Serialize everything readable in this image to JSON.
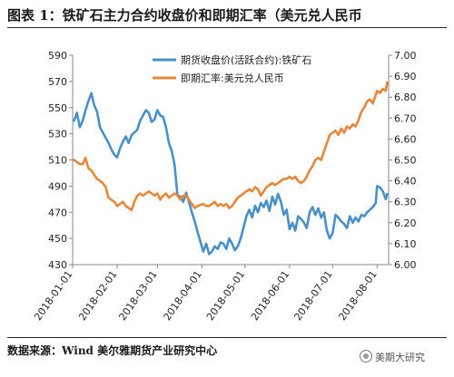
{
  "figure": {
    "title": "图表 1：铁矿石主力合约收盘价和即期汇率（美元兑人民币",
    "source": "数据来源：Wind  美尔雅期货产业研究中心",
    "watermark": "美期大研究"
  },
  "chart_data": {
    "type": "line",
    "grid": false,
    "legend_position": "top-center",
    "x_type": "date",
    "x_ticks": [
      "2018-01-01",
      "2018-02-01",
      "2018-03-01",
      "2018-04-01",
      "2018-05-01",
      "2018-06-01",
      "2018-07-01",
      "2018-08-01"
    ],
    "y_left": {
      "min": 430,
      "max": 590,
      "ticks": [
        430,
        450,
        470,
        490,
        510,
        530,
        550,
        570,
        590
      ]
    },
    "y_right": {
      "min": 6.0,
      "max": 7.0,
      "ticks": [
        "6.00",
        "6.10",
        "6.20",
        "6.30",
        "6.40",
        "6.50",
        "6.60",
        "6.70",
        "6.80",
        "6.90",
        "7.00"
      ]
    },
    "series": [
      {
        "name": "期货收盘价(活跃合约):铁矿石",
        "axis": "left",
        "color": "#4a90c8",
        "points": [
          [
            "2018-01-02",
            540
          ],
          [
            "2018-01-04",
            546
          ],
          [
            "2018-01-06",
            535
          ],
          [
            "2018-01-08",
            540
          ],
          [
            "2018-01-10",
            548
          ],
          [
            "2018-01-12",
            555
          ],
          [
            "2018-01-14",
            561
          ],
          [
            "2018-01-16",
            552
          ],
          [
            "2018-01-18",
            547
          ],
          [
            "2018-01-20",
            535
          ],
          [
            "2018-01-22",
            531
          ],
          [
            "2018-01-24",
            527
          ],
          [
            "2018-01-26",
            523
          ],
          [
            "2018-01-28",
            518
          ],
          [
            "2018-01-30",
            514
          ],
          [
            "2018-02-01",
            512
          ],
          [
            "2018-02-03",
            519
          ],
          [
            "2018-02-05",
            524
          ],
          [
            "2018-02-07",
            528
          ],
          [
            "2018-02-09",
            523
          ],
          [
            "2018-02-11",
            529
          ],
          [
            "2018-02-13",
            531
          ],
          [
            "2018-02-15",
            533
          ],
          [
            "2018-02-17",
            540
          ],
          [
            "2018-02-19",
            544
          ],
          [
            "2018-02-21",
            548
          ],
          [
            "2018-02-23",
            546
          ],
          [
            "2018-02-25",
            539
          ],
          [
            "2018-02-27",
            541
          ],
          [
            "2018-03-01",
            548
          ],
          [
            "2018-03-03",
            544
          ],
          [
            "2018-03-05",
            543
          ],
          [
            "2018-03-07",
            535
          ],
          [
            "2018-03-09",
            523
          ],
          [
            "2018-03-11",
            517
          ],
          [
            "2018-03-13",
            506
          ],
          [
            "2018-03-15",
            483
          ],
          [
            "2018-03-17",
            482
          ],
          [
            "2018-03-19",
            478
          ],
          [
            "2018-03-21",
            485
          ],
          [
            "2018-03-23",
            478
          ],
          [
            "2018-03-25",
            470
          ],
          [
            "2018-03-27",
            463
          ],
          [
            "2018-03-29",
            455
          ],
          [
            "2018-04-02",
            440
          ],
          [
            "2018-04-04",
            446
          ],
          [
            "2018-04-06",
            438
          ],
          [
            "2018-04-08",
            440
          ],
          [
            "2018-04-10",
            444
          ],
          [
            "2018-04-12",
            442
          ],
          [
            "2018-04-14",
            447
          ],
          [
            "2018-04-16",
            446
          ],
          [
            "2018-04-18",
            442
          ],
          [
            "2018-04-20",
            450
          ],
          [
            "2018-04-22",
            446
          ],
          [
            "2018-04-24",
            441
          ],
          [
            "2018-04-26",
            444
          ],
          [
            "2018-04-28",
            450
          ],
          [
            "2018-05-02",
            467
          ],
          [
            "2018-05-04",
            472
          ],
          [
            "2018-05-06",
            466
          ],
          [
            "2018-05-08",
            475
          ],
          [
            "2018-05-10",
            470
          ],
          [
            "2018-05-12",
            477
          ],
          [
            "2018-05-14",
            474
          ],
          [
            "2018-05-16",
            479
          ],
          [
            "2018-05-18",
            471
          ],
          [
            "2018-05-20",
            482
          ],
          [
            "2018-05-22",
            476
          ],
          [
            "2018-05-24",
            484
          ],
          [
            "2018-05-26",
            478
          ],
          [
            "2018-05-28",
            468
          ],
          [
            "2018-05-30",
            472
          ],
          [
            "2018-06-01",
            457
          ],
          [
            "2018-06-03",
            462
          ],
          [
            "2018-06-05",
            456
          ],
          [
            "2018-06-07",
            467
          ],
          [
            "2018-06-09",
            465
          ],
          [
            "2018-06-11",
            462
          ],
          [
            "2018-06-13",
            458
          ],
          [
            "2018-06-15",
            470
          ],
          [
            "2018-06-17",
            474
          ],
          [
            "2018-06-19",
            468
          ],
          [
            "2018-06-21",
            473
          ],
          [
            "2018-06-23",
            466
          ],
          [
            "2018-06-25",
            470
          ],
          [
            "2018-06-27",
            456
          ],
          [
            "2018-06-29",
            450
          ],
          [
            "2018-07-01",
            454
          ],
          [
            "2018-07-03",
            468
          ],
          [
            "2018-07-05",
            466
          ],
          [
            "2018-07-07",
            463
          ],
          [
            "2018-07-09",
            461
          ],
          [
            "2018-07-11",
            458
          ],
          [
            "2018-07-13",
            467
          ],
          [
            "2018-07-15",
            462
          ],
          [
            "2018-07-17",
            466
          ],
          [
            "2018-07-19",
            463
          ],
          [
            "2018-07-21",
            468
          ],
          [
            "2018-07-23",
            467
          ],
          [
            "2018-07-25",
            470
          ],
          [
            "2018-07-27",
            472
          ],
          [
            "2018-07-29",
            474
          ],
          [
            "2018-07-31",
            477
          ],
          [
            "2018-08-01",
            490
          ],
          [
            "2018-08-03",
            489
          ],
          [
            "2018-08-05",
            486
          ],
          [
            "2018-08-07",
            480
          ],
          [
            "2018-08-08",
            484
          ]
        ]
      },
      {
        "name": "即期汇率:美元兑人民币",
        "axis": "right",
        "color": "#e8873a",
        "points": [
          [
            "2018-01-02",
            6.5
          ],
          [
            "2018-01-04",
            6.49
          ],
          [
            "2018-01-06",
            6.48
          ],
          [
            "2018-01-08",
            6.48
          ],
          [
            "2018-01-10",
            6.51
          ],
          [
            "2018-01-12",
            6.46
          ],
          [
            "2018-01-14",
            6.45
          ],
          [
            "2018-01-16",
            6.43
          ],
          [
            "2018-01-18",
            6.41
          ],
          [
            "2018-01-20",
            6.4
          ],
          [
            "2018-01-22",
            6.39
          ],
          [
            "2018-01-24",
            6.37
          ],
          [
            "2018-01-26",
            6.32
          ],
          [
            "2018-01-28",
            6.31
          ],
          [
            "2018-01-30",
            6.3
          ],
          [
            "2018-02-01",
            6.28
          ],
          [
            "2018-02-03",
            6.29
          ],
          [
            "2018-02-05",
            6.3
          ],
          [
            "2018-02-07",
            6.28
          ],
          [
            "2018-02-09",
            6.27
          ],
          [
            "2018-02-11",
            6.26
          ],
          [
            "2018-02-13",
            6.3
          ],
          [
            "2018-02-15",
            6.33
          ],
          [
            "2018-02-17",
            6.34
          ],
          [
            "2018-02-19",
            6.33
          ],
          [
            "2018-02-21",
            6.34
          ],
          [
            "2018-02-23",
            6.35
          ],
          [
            "2018-02-25",
            6.34
          ],
          [
            "2018-02-27",
            6.33
          ],
          [
            "2018-03-01",
            6.34
          ],
          [
            "2018-03-03",
            6.31
          ],
          [
            "2018-03-05",
            6.33
          ],
          [
            "2018-03-07",
            6.34
          ],
          [
            "2018-03-09",
            6.32
          ],
          [
            "2018-03-11",
            6.33
          ],
          [
            "2018-03-13",
            6.34
          ],
          [
            "2018-03-15",
            6.33
          ],
          [
            "2018-03-17",
            6.31
          ],
          [
            "2018-03-19",
            6.33
          ],
          [
            "2018-03-21",
            6.33
          ],
          [
            "2018-03-23",
            6.31
          ],
          [
            "2018-03-25",
            6.29
          ],
          [
            "2018-03-27",
            6.27
          ],
          [
            "2018-03-29",
            6.28
          ],
          [
            "2018-04-02",
            6.29
          ],
          [
            "2018-04-04",
            6.28
          ],
          [
            "2018-04-06",
            6.28
          ],
          [
            "2018-04-08",
            6.29
          ],
          [
            "2018-04-10",
            6.3
          ],
          [
            "2018-04-12",
            6.28
          ],
          [
            "2018-04-14",
            6.29
          ],
          [
            "2018-04-16",
            6.28
          ],
          [
            "2018-04-18",
            6.29
          ],
          [
            "2018-04-20",
            6.27
          ],
          [
            "2018-04-22",
            6.28
          ],
          [
            "2018-04-24",
            6.3
          ],
          [
            "2018-04-26",
            6.32
          ],
          [
            "2018-04-28",
            6.33
          ],
          [
            "2018-05-02",
            6.35
          ],
          [
            "2018-05-04",
            6.36
          ],
          [
            "2018-05-06",
            6.35
          ],
          [
            "2018-05-08",
            6.37
          ],
          [
            "2018-05-10",
            6.36
          ],
          [
            "2018-05-12",
            6.33
          ],
          [
            "2018-05-14",
            6.35
          ],
          [
            "2018-05-16",
            6.37
          ],
          [
            "2018-05-18",
            6.38
          ],
          [
            "2018-05-20",
            6.39
          ],
          [
            "2018-05-22",
            6.38
          ],
          [
            "2018-05-24",
            6.39
          ],
          [
            "2018-05-26",
            6.4
          ],
          [
            "2018-05-28",
            6.41
          ],
          [
            "2018-05-30",
            6.41
          ],
          [
            "2018-06-01",
            6.42
          ],
          [
            "2018-06-03",
            6.41
          ],
          [
            "2018-06-05",
            6.42
          ],
          [
            "2018-06-07",
            6.4
          ],
          [
            "2018-06-09",
            6.39
          ],
          [
            "2018-06-11",
            6.4
          ],
          [
            "2018-06-13",
            6.42
          ],
          [
            "2018-06-15",
            6.45
          ],
          [
            "2018-06-17",
            6.47
          ],
          [
            "2018-06-19",
            6.5
          ],
          [
            "2018-06-21",
            6.51
          ],
          [
            "2018-06-23",
            6.5
          ],
          [
            "2018-06-25",
            6.54
          ],
          [
            "2018-06-27",
            6.58
          ],
          [
            "2018-06-29",
            6.62
          ],
          [
            "2018-07-01",
            6.63
          ],
          [
            "2018-07-03",
            6.64
          ],
          [
            "2018-07-05",
            6.62
          ],
          [
            "2018-07-07",
            6.65
          ],
          [
            "2018-07-09",
            6.63
          ],
          [
            "2018-07-11",
            6.66
          ],
          [
            "2018-07-13",
            6.65
          ],
          [
            "2018-07-15",
            6.67
          ],
          [
            "2018-07-17",
            6.66
          ],
          [
            "2018-07-19",
            6.69
          ],
          [
            "2018-07-21",
            6.73
          ],
          [
            "2018-07-23",
            6.75
          ],
          [
            "2018-07-25",
            6.78
          ],
          [
            "2018-07-27",
            6.79
          ],
          [
            "2018-07-29",
            6.77
          ],
          [
            "2018-07-31",
            6.81
          ],
          [
            "2018-08-01",
            6.83
          ],
          [
            "2018-08-03",
            6.82
          ],
          [
            "2018-08-05",
            6.84
          ],
          [
            "2018-08-07",
            6.83
          ],
          [
            "2018-08-08",
            6.87
          ]
        ]
      }
    ]
  }
}
